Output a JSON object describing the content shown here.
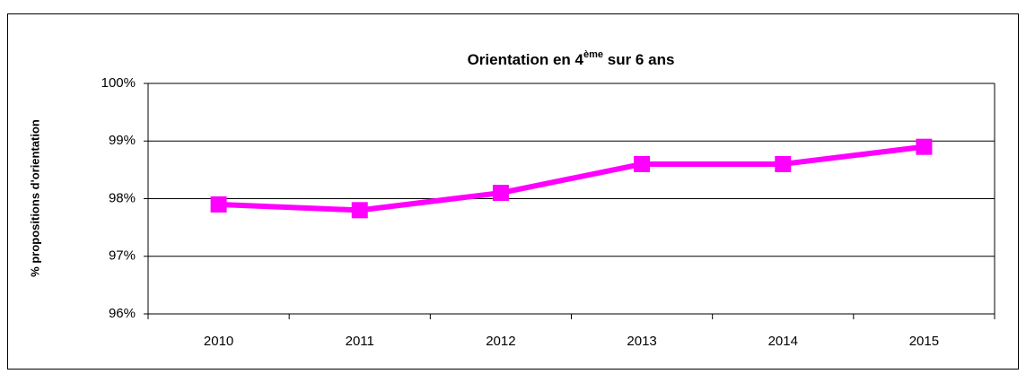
{
  "chart_data": {
    "type": "line",
    "title": [
      "Orientation en 4",
      "ème",
      " sur 6 ans"
    ],
    "y_label": "% propositions d'orientation",
    "categories": [
      "2010",
      "2011",
      "2012",
      "2013",
      "2014",
      "2015"
    ],
    "values": [
      97.9,
      97.8,
      98.1,
      98.6,
      98.6,
      98.9
    ],
    "color": "#ff00ff",
    "ylim": [
      96,
      100
    ],
    "yticks": [
      {
        "value": 96,
        "label": "96%"
      },
      {
        "value": 97,
        "label": "97%"
      },
      {
        "value": 98,
        "label": "98%"
      },
      {
        "value": 99,
        "label": "99%"
      },
      {
        "value": 100,
        "label": "100%"
      }
    ],
    "grid": true
  }
}
